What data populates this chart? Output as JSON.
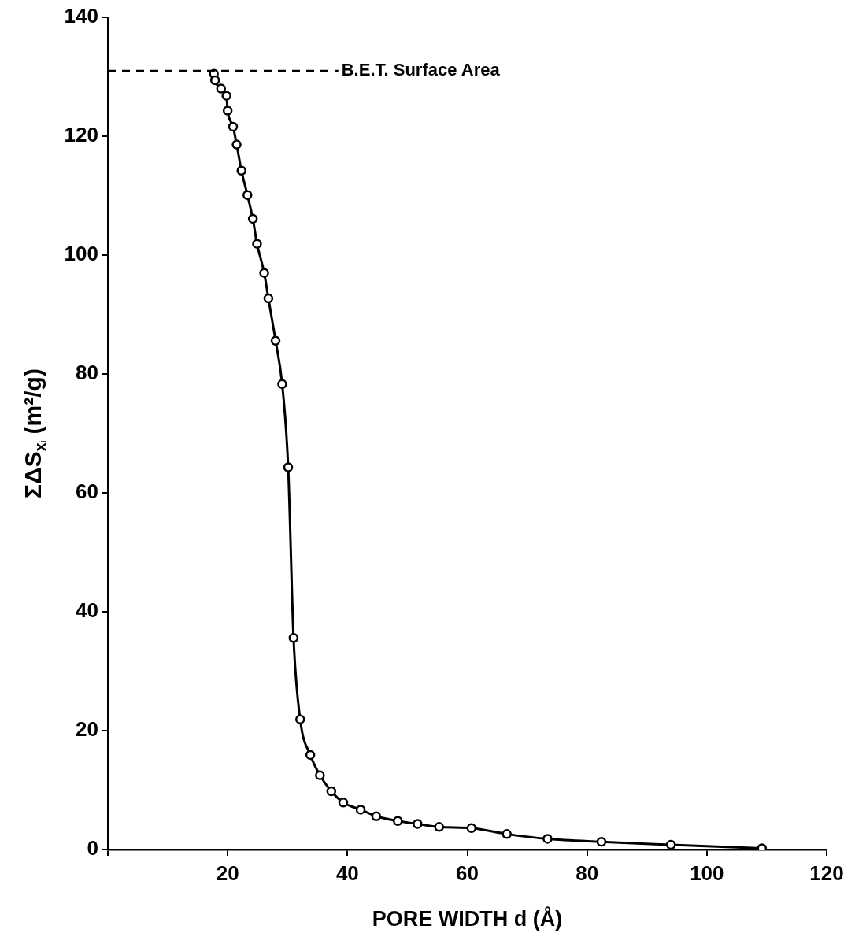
{
  "chart_data": {
    "type": "line",
    "xlabel": "PORE WIDTH d (Å)",
    "ylabel": "ΣΔS$_{xᵢ}$ (m²/g)",
    "xlim": [
      0,
      120
    ],
    "xticks": [
      {
        "value": 0,
        "label": null
      },
      20,
      40,
      60,
      80,
      100,
      120
    ],
    "ylim": [
      0,
      140
    ],
    "yticks": [
      0,
      20,
      40,
      60,
      80,
      100,
      120,
      140
    ],
    "grid": false,
    "legend": false,
    "marker": "circle",
    "line_style": "solid",
    "ref_lines": [
      {
        "axis": "y",
        "value": 131,
        "label": "B.E.T. Surface Area",
        "line_style": "dashed",
        "color": "#000000"
      }
    ],
    "series": [
      {
        "color": "#000000",
        "x": [
          17.7,
          17.9,
          18.9,
          19.8,
          20.0,
          20.9,
          21.5,
          22.3,
          23.3,
          24.2,
          24.9,
          26.1,
          26.8,
          28.0,
          29.1,
          30.1,
          31.0,
          32.1,
          33.8,
          35.4,
          37.3,
          39.3,
          42.2,
          44.8,
          48.4,
          51.7,
          55.3,
          60.7,
          66.6,
          73.4,
          82.4,
          94.0,
          109.2
        ],
        "values": [
          130.5,
          129.4,
          128.0,
          126.8,
          124.3,
          121.6,
          118.6,
          114.2,
          110.1,
          106.1,
          101.9,
          97.0,
          92.7,
          85.6,
          78.3,
          64.3,
          35.6,
          21.9,
          15.9,
          12.5,
          9.8,
          7.9,
          6.7,
          5.6,
          4.8,
          4.3,
          3.8,
          3.6,
          2.6,
          1.8,
          1.3,
          0.8,
          0.2
        ]
      }
    ]
  }
}
